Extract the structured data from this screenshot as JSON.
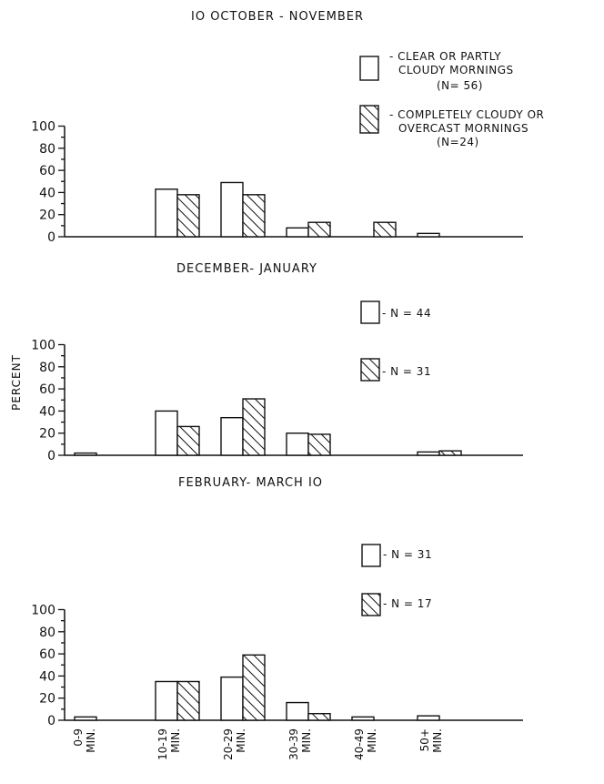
{
  "chart_data": {
    "type": "bar",
    "ylabel": "PERCENT",
    "categories": [
      "0-9|MIN.",
      "10-19|MIN.",
      "20-29|MIN.",
      "30-39|MIN.",
      "40-49|MIN.",
      "50+|MIN."
    ],
    "ylim": [
      0,
      100
    ],
    "yticks": [
      "0",
      "20",
      "40",
      "60",
      "80",
      "100"
    ],
    "grid": false,
    "panels": [
      {
        "title": "IO OCTOBER - NOVEMBER",
        "series": [
          {
            "name": "CLEAR OR PARTLY CLOUDY MORNINGS (N=56)",
            "pattern": "open",
            "values": [
              0,
              43,
              49,
              8,
              0,
              3
            ],
            "legend_lines": [
              "- CLEAR OR PARTLY",
              "CLOUDY MORNINGS",
              "(N= 56)"
            ]
          },
          {
            "name": "COMPLETELY CLOUDY OR OVERCAST MORNINGS (N=24)",
            "pattern": "hatched",
            "values": [
              0,
              38,
              38,
              13,
              13,
              0
            ],
            "legend_lines": [
              "- COMPLETELY CLOUDY OR",
              "OVERCAST MORNINGS",
              "(N=24)"
            ]
          }
        ]
      },
      {
        "title": "DECEMBER- JANUARY",
        "series": [
          {
            "name": "N = 44",
            "pattern": "open",
            "values": [
              2,
              40,
              34,
              20,
              0,
              3
            ],
            "legend_lines": [
              "- N = 44"
            ]
          },
          {
            "name": "N = 31",
            "pattern": "hatched",
            "values": [
              0,
              26,
              51,
              19,
              0,
              4
            ],
            "legend_lines": [
              "- N = 31"
            ]
          }
        ]
      },
      {
        "title": "FEBRUARY- MARCH IO",
        "series": [
          {
            "name": "N = 31",
            "pattern": "open",
            "values": [
              3,
              35,
              39,
              16,
              3,
              4
            ],
            "legend_lines": [
              "- N = 31"
            ]
          },
          {
            "name": "N = 17",
            "pattern": "hatched",
            "values": [
              0,
              35,
              59,
              6,
              0,
              0
            ],
            "legend_lines": [
              "- N = 17"
            ]
          }
        ]
      }
    ]
  }
}
